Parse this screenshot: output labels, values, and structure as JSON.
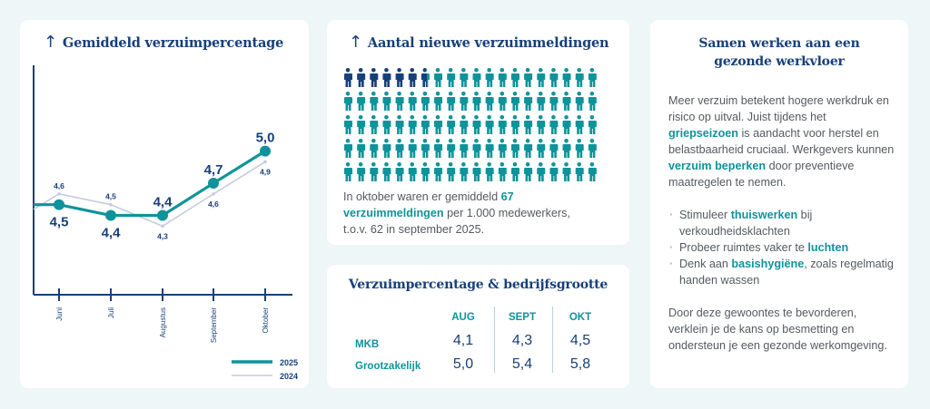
{
  "colors": {
    "navy": "#17407a",
    "teal": "#0f939b",
    "light_line": "#c6cbdd",
    "background": "#eef6f7"
  },
  "chart_data": {
    "type": "line",
    "title": "Gemiddeld verzuimpercentage",
    "title_icon": "arrow-up-icon",
    "categories": [
      "Juni",
      "Juli",
      "Augustus",
      "September",
      "Oktober"
    ],
    "series": [
      {
        "name": "2025",
        "values": [
          4.5,
          4.4,
          4.4,
          4.7,
          5.0
        ],
        "labels": [
          "4,5",
          "4,4",
          "4,4",
          "4,7",
          "5,0"
        ],
        "color": "#0f939b"
      },
      {
        "name": "2024",
        "values": [
          4.6,
          4.5,
          4.3,
          4.6,
          4.9
        ],
        "labels": [
          "4,6",
          "4,5",
          "4,3",
          "4,6",
          "4,9"
        ],
        "color": "#c6cbdd"
      }
    ],
    "ylim": [
      3.66,
      5.8
    ],
    "grid": false,
    "legend": "bottom-right"
  },
  "meldingen": {
    "title": "Aantal nieuwe verzuimmeldingen",
    "title_icon": "arrow-up-icon",
    "icon_total": 100,
    "icon_highlighted": 6.7,
    "text_before": "In oktober waren er gemiddeld ",
    "text_bold": "67 verzuimmeldingen",
    "text_after": " per 1.000 medewerkers, t.o.v. 62 in september 2025."
  },
  "table": {
    "title": "Verzuimpercentage & bedrijfsgrootte",
    "columns": [
      "AUG",
      "SEPT",
      "OKT"
    ],
    "rows": [
      {
        "label": "MKB",
        "values": [
          "4,1",
          "4,3",
          "4,5"
        ]
      },
      {
        "label": "Grootzakelijk",
        "values": [
          "5,0",
          "5,4",
          "5,8"
        ]
      }
    ]
  },
  "info": {
    "title_line1": "Samen werken aan een",
    "title_line2": "gezonde werkvloer",
    "p1": [
      {
        "t": "Meer verzuim betekent hogere werkdruk en risico op uitval. Juist tijdens het "
      },
      {
        "t": "griepseizoen",
        "b": true
      },
      {
        "t": " is aandacht voor herstel en belastbaarheid cruciaal. Werkgevers kunnen "
      },
      {
        "t": "verzuim beperken",
        "b": true
      },
      {
        "t": " door preventieve maatregelen te nemen."
      }
    ],
    "bullets": [
      [
        {
          "t": "Stimuleer "
        },
        {
          "t": "thuiswerken",
          "b": true
        },
        {
          "t": " bij verkoudheidsklachten"
        }
      ],
      [
        {
          "t": "Probeer ruimtes vaker te "
        },
        {
          "t": "luchten",
          "b": true
        }
      ],
      [
        {
          "t": "Denk aan "
        },
        {
          "t": "basishygiëne",
          "b": true
        },
        {
          "t": ", zoals regelmatig handen wassen"
        }
      ]
    ],
    "p2": "Door deze gewoontes te bevorderen, verklein je de kans op besmetting en ondersteun je een gezonde werkomgeving."
  }
}
